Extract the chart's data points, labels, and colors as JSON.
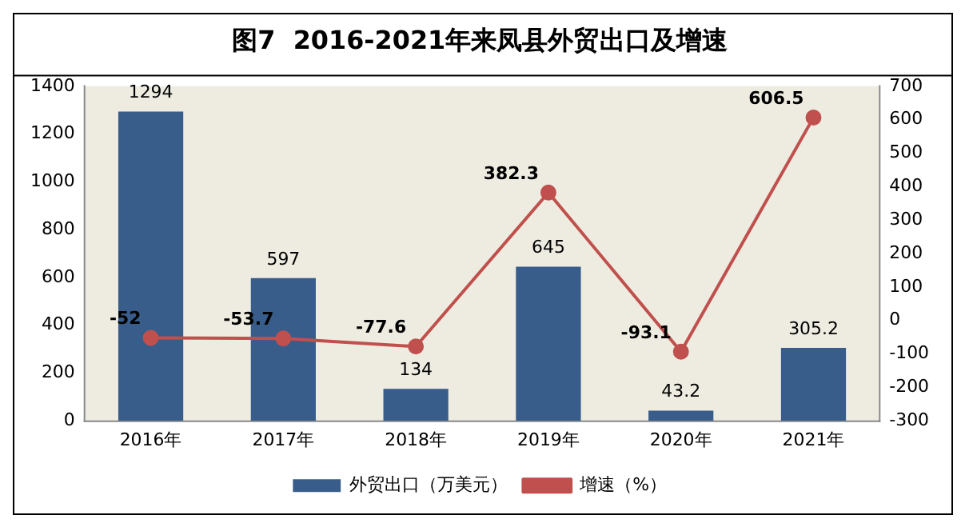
{
  "chart_data": {
    "type": "bar",
    "title": "图7  2016-2021年来凤县外贸出口及增速",
    "categories": [
      "2016年",
      "2017年",
      "2018年",
      "2019年",
      "2020年",
      "2021年"
    ],
    "series": [
      {
        "name": "外贸出口（万美元）",
        "color": "#385d8a",
        "values": [
          1294,
          597,
          134,
          645,
          43.2,
          305.2
        ]
      },
      {
        "name": "增速（%）",
        "type": "line",
        "axis": "y2",
        "color": "#c0504d",
        "values": [
          -52,
          -53.7,
          -77.6,
          382.3,
          -93.1,
          606.5
        ]
      }
    ],
    "ylim": [
      0,
      1400
    ],
    "yticks": [
      0,
      200,
      400,
      600,
      800,
      1000,
      1200,
      1400
    ],
    "y2lim": [
      -300,
      700
    ],
    "y2ticks": [
      -300,
      -200,
      -100,
      0,
      100,
      200,
      300,
      400,
      500,
      600,
      700
    ],
    "data_labels": true,
    "grid": false,
    "legend": "bottom",
    "marker": "circle",
    "line_style": "solid"
  }
}
